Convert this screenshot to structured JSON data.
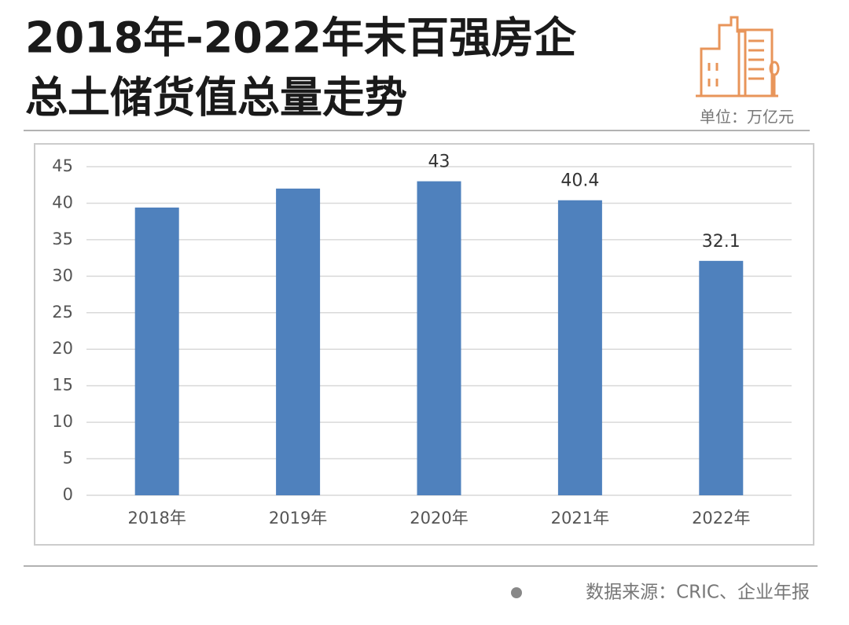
{
  "chart_data": {
    "type": "bar",
    "title_lines": [
      "2018年-2022年末百强房企",
      "总土储货值总量走势"
    ],
    "unit": "单位：万亿元",
    "source": "数据来源：CRIC、企业年报",
    "categories": [
      "2018年",
      "2019年",
      "2020年",
      "2021年",
      "2022年"
    ],
    "values": [
      39.4,
      42,
      43,
      40.4,
      32.1
    ],
    "value_labels": [
      null,
      null,
      "43",
      "40.4",
      "32.1"
    ],
    "color": "#4f81bd",
    "ylim": [
      0,
      45
    ],
    "yticks": [
      0,
      5,
      10,
      15,
      20,
      25,
      30,
      35,
      40,
      45
    ],
    "grid": true
  }
}
